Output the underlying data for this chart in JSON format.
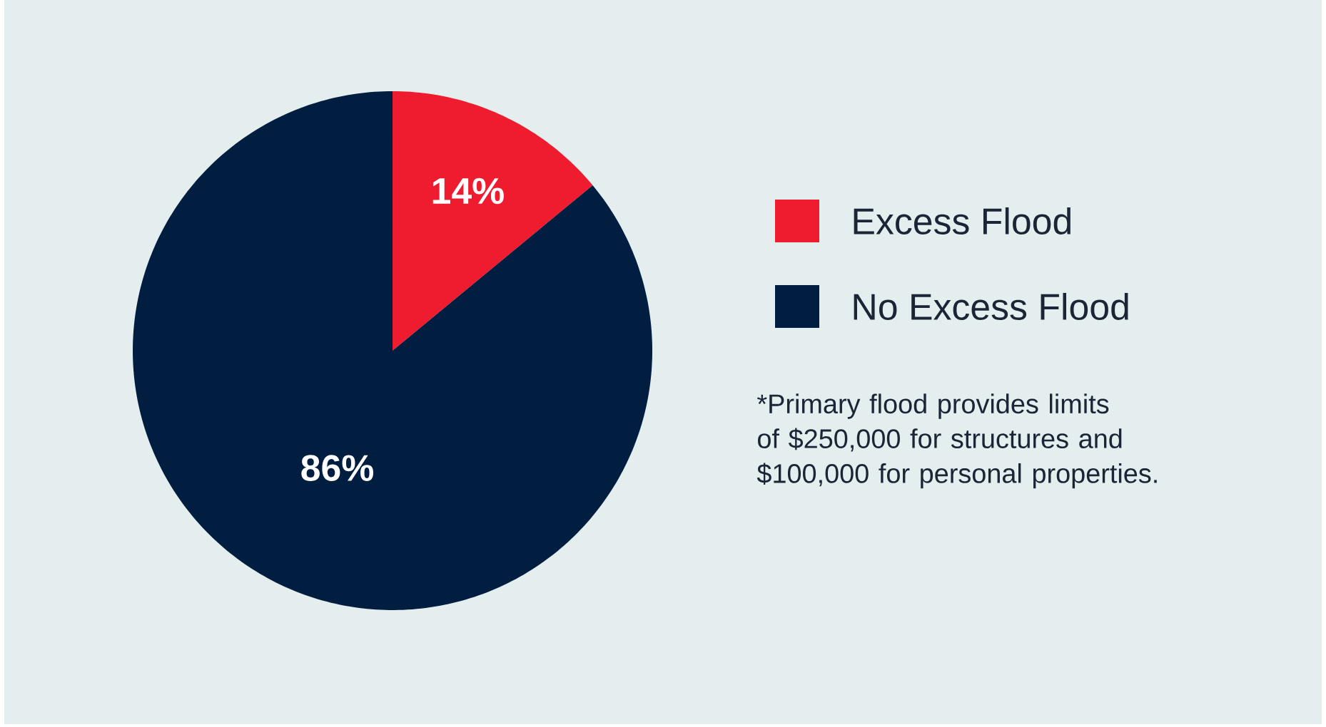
{
  "chart_data": {
    "type": "pie",
    "categories": [
      "Excess Flood",
      "No Excess Flood"
    ],
    "values": [
      14,
      86
    ],
    "value_labels": [
      "14%",
      "86%"
    ],
    "colors": [
      "#ee1c2e",
      "#011e41"
    ],
    "legend": "right",
    "annotations": [
      "*Primary flood provides limits of $250,000 for structures and $100,000 for personal properties."
    ]
  }
}
